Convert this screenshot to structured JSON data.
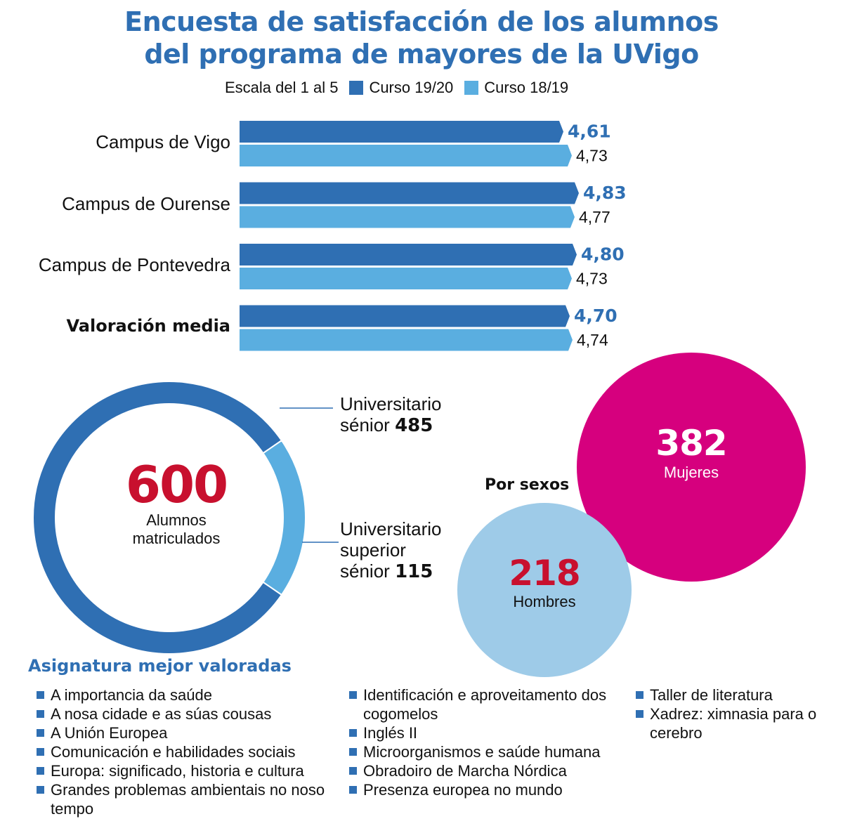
{
  "title": {
    "line1": "Encuesta de satisfacción de los alumnos",
    "line2": "del programa de mayores de la UVigo"
  },
  "legend": {
    "scale": "Escala del 1 al 5",
    "series1": "Curso 19/20",
    "series2": "Curso 18/19"
  },
  "colors": {
    "dark_blue": "#2f6fb3",
    "light_blue": "#5aaee0",
    "pale_blue": "#9ecbe8",
    "magenta": "#d6007e",
    "red": "#c8102e"
  },
  "chart_data": [
    {
      "type": "bar",
      "orientation": "horizontal",
      "categories": [
        "Campus de Vigo",
        "Campus de Ourense",
        "Campus de Pontevedra",
        "Valoración media"
      ],
      "series": [
        {
          "name": "Curso 19/20",
          "values": [
            4.61,
            4.83,
            4.8,
            4.7
          ],
          "labels": [
            "4,61",
            "4,83",
            "4,80",
            "4,70"
          ]
        },
        {
          "name": "Curso 18/19",
          "values": [
            4.73,
            4.77,
            4.73,
            4.74
          ],
          "labels": [
            "4,73",
            "4,77",
            "4,73",
            "4,74"
          ]
        }
      ]
    },
    {
      "type": "pie",
      "center_value": "600",
      "center_label_line1": "Alumnos",
      "center_label_line2": "matriculados",
      "slices": [
        {
          "label_line1": "Universitario",
          "label_line2": "sénior",
          "value": 485,
          "value_label": "485"
        },
        {
          "label_line1": "Universitario",
          "label_line2": "superior",
          "label_line3": "sénior",
          "value": 115,
          "value_label": "115"
        }
      ]
    },
    {
      "type": "bubble",
      "title": "Por sexos",
      "items": [
        {
          "label": "Mujeres",
          "value": 382,
          "value_label": "382"
        },
        {
          "label": "Hombres",
          "value": 218,
          "value_label": "218"
        }
      ]
    }
  ],
  "subjects": {
    "title": "Asignatura mejor valoradas",
    "col1": [
      "A importancia da saúde",
      "A nosa cidade e as súas cousas",
      "A Unión Europea",
      "Comunicación e habilidades sociais",
      "Europa: significado, historia e cultura",
      "Grandes problemas ambientais no noso tempo"
    ],
    "col2": [
      "Identificación e aproveitamento dos cogomelos",
      "Inglés II",
      "Microorganismos e saúde humana",
      "Obradoiro de Marcha Nórdica",
      "Presenza europea no mundo"
    ],
    "col3": [
      "Taller de literatura",
      "Xadrez: ximnasia para o cerebro"
    ]
  }
}
